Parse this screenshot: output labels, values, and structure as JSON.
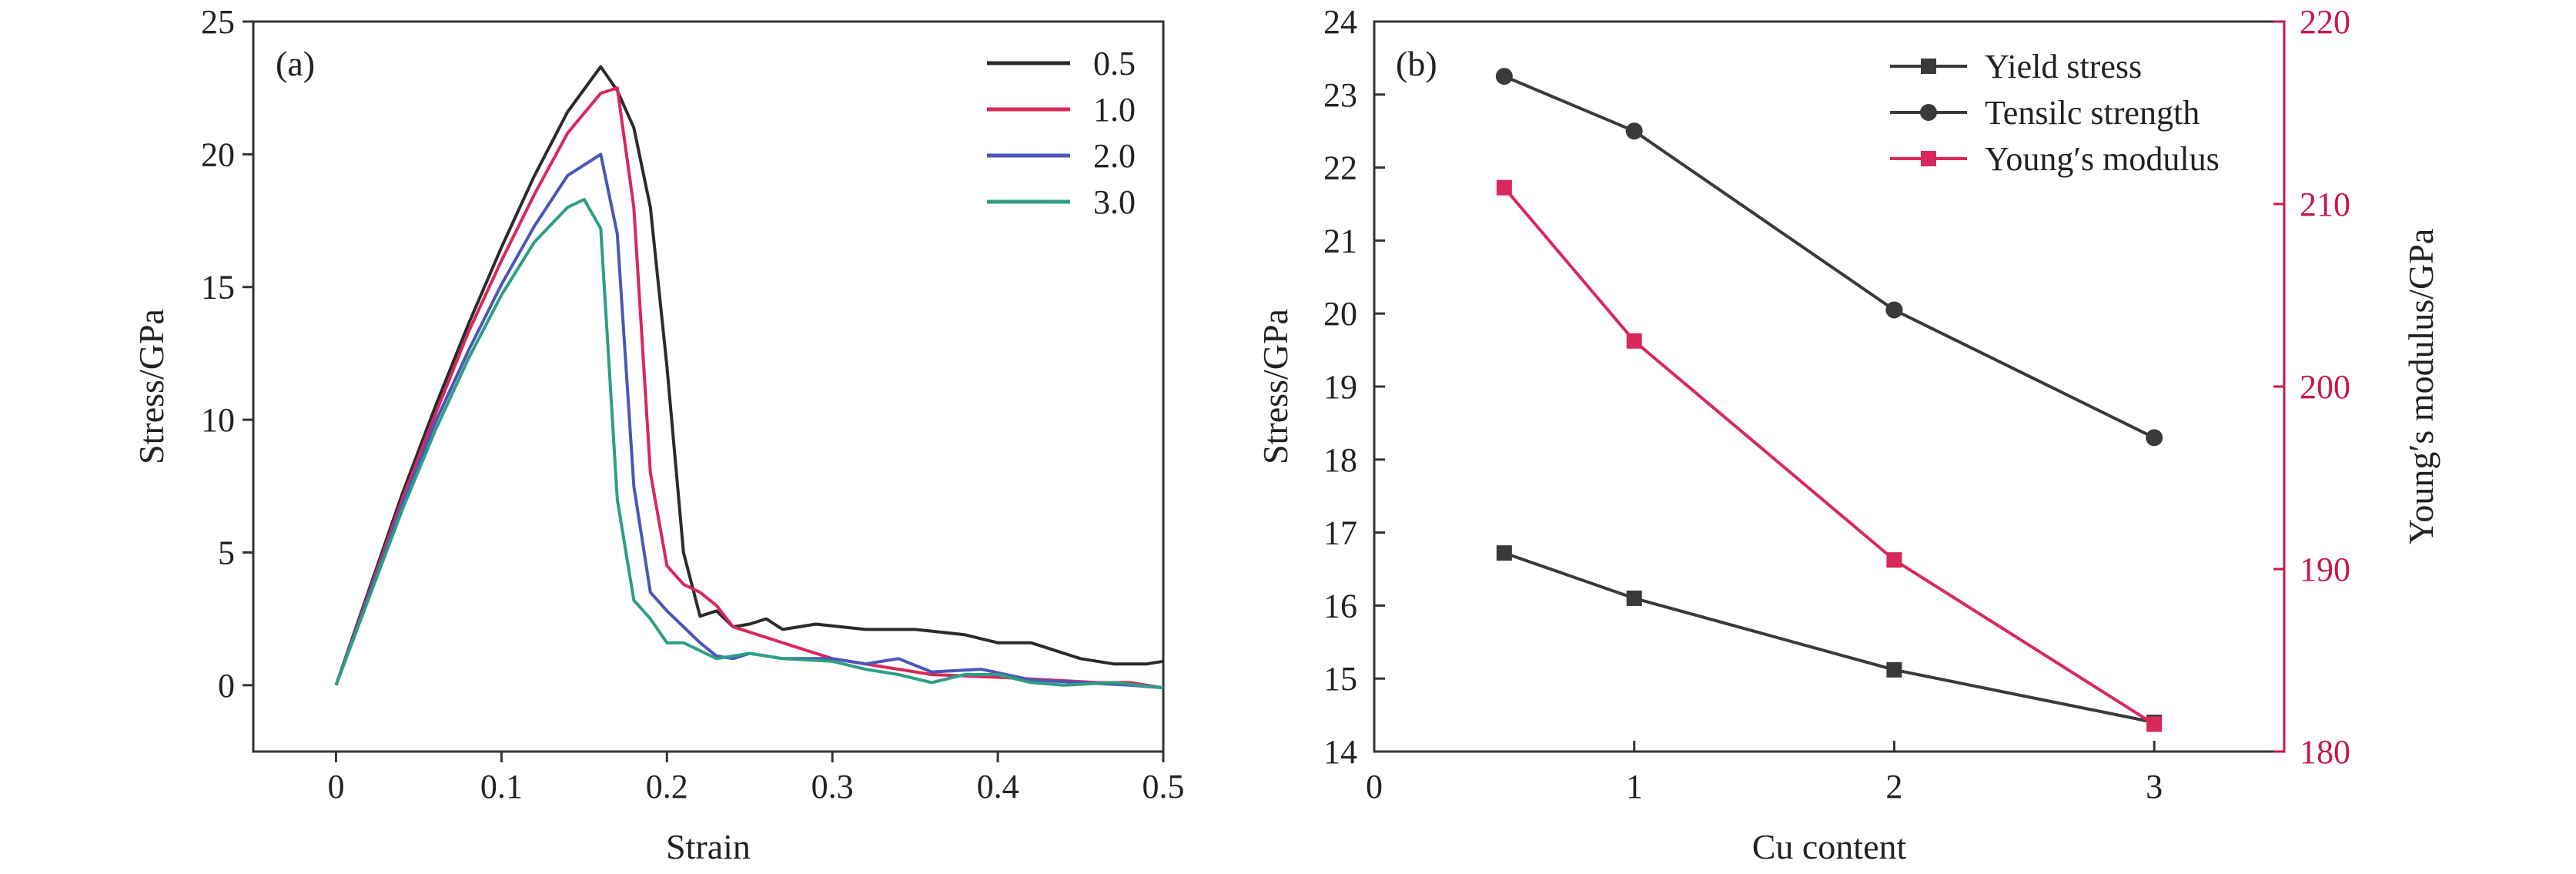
{
  "chart_data": [
    {
      "panel_label": "(a)",
      "type": "line",
      "xlabel": "Strain",
      "ylabel": "Stress/GPa",
      "xlim": [
        -0.05,
        0.5
      ],
      "ylim": [
        -2.5,
        25
      ],
      "xticks": [
        0,
        0.1,
        0.2,
        0.3,
        0.4,
        0.5
      ],
      "xtick_labels": [
        "0",
        "0.1",
        "0.2",
        "0.3",
        "0.4",
        "0.5"
      ],
      "yticks": [
        0,
        5,
        10,
        15,
        20,
        25
      ],
      "ytick_labels": [
        "0",
        "5",
        "10",
        "15",
        "20",
        "25"
      ],
      "legend_position": "top-right",
      "grid": false,
      "series": [
        {
          "name": "0.5",
          "color": "#2b2b2b",
          "points": [
            [
              0,
              0
            ],
            [
              0.02,
              3.6
            ],
            [
              0.04,
              7.2
            ],
            [
              0.06,
              10.5
            ],
            [
              0.08,
              13.6
            ],
            [
              0.1,
              16.5
            ],
            [
              0.12,
              19.2
            ],
            [
              0.14,
              21.6
            ],
            [
              0.16,
              23.3
            ],
            [
              0.17,
              22.4
            ],
            [
              0.18,
              21.0
            ],
            [
              0.19,
              18.0
            ],
            [
              0.2,
              12.0
            ],
            [
              0.21,
              5.0
            ],
            [
              0.22,
              2.6
            ],
            [
              0.23,
              2.8
            ],
            [
              0.24,
              2.2
            ],
            [
              0.25,
              2.3
            ],
            [
              0.26,
              2.5
            ],
            [
              0.27,
              2.1
            ],
            [
              0.29,
              2.3
            ],
            [
              0.32,
              2.1
            ],
            [
              0.35,
              2.1
            ],
            [
              0.38,
              1.9
            ],
            [
              0.4,
              1.6
            ],
            [
              0.42,
              1.6
            ],
            [
              0.45,
              1.0
            ],
            [
              0.47,
              0.8
            ],
            [
              0.49,
              0.8
            ],
            [
              0.5,
              0.9
            ]
          ]
        },
        {
          "name": "1.0",
          "color": "#d9285a",
          "points": [
            [
              0,
              0
            ],
            [
              0.02,
              3.5
            ],
            [
              0.04,
              7.0
            ],
            [
              0.06,
              10.2
            ],
            [
              0.08,
              13.3
            ],
            [
              0.1,
              16.0
            ],
            [
              0.12,
              18.5
            ],
            [
              0.14,
              20.8
            ],
            [
              0.16,
              22.3
            ],
            [
              0.17,
              22.5
            ],
            [
              0.18,
              18.0
            ],
            [
              0.19,
              8.0
            ],
            [
              0.2,
              4.5
            ],
            [
              0.21,
              3.8
            ],
            [
              0.22,
              3.5
            ],
            [
              0.23,
              3.0
            ],
            [
              0.24,
              2.2
            ],
            [
              0.26,
              1.8
            ],
            [
              0.28,
              1.4
            ],
            [
              0.3,
              1.0
            ],
            [
              0.33,
              0.7
            ],
            [
              0.36,
              0.4
            ],
            [
              0.4,
              0.3
            ],
            [
              0.43,
              0.2
            ],
            [
              0.46,
              0.1
            ],
            [
              0.48,
              0.1
            ],
            [
              0.5,
              -0.1
            ]
          ]
        },
        {
          "name": "2.0",
          "color": "#4b56b8",
          "points": [
            [
              0,
              0
            ],
            [
              0.02,
              3.4
            ],
            [
              0.04,
              6.8
            ],
            [
              0.06,
              9.9
            ],
            [
              0.08,
              12.6
            ],
            [
              0.1,
              15.1
            ],
            [
              0.12,
              17.3
            ],
            [
              0.14,
              19.2
            ],
            [
              0.16,
              20.0
            ],
            [
              0.17,
              17.0
            ],
            [
              0.18,
              7.5
            ],
            [
              0.19,
              3.5
            ],
            [
              0.2,
              2.8
            ],
            [
              0.21,
              2.2
            ],
            [
              0.22,
              1.6
            ],
            [
              0.23,
              1.1
            ],
            [
              0.24,
              1.0
            ],
            [
              0.25,
              1.2
            ],
            [
              0.27,
              1.0
            ],
            [
              0.3,
              1.0
            ],
            [
              0.32,
              0.8
            ],
            [
              0.34,
              1.0
            ],
            [
              0.36,
              0.5
            ],
            [
              0.39,
              0.6
            ],
            [
              0.42,
              0.2
            ],
            [
              0.45,
              0.1
            ],
            [
              0.48,
              0.0
            ],
            [
              0.5,
              -0.1
            ]
          ]
        },
        {
          "name": "3.0",
          "color": "#2e9e86",
          "points": [
            [
              0,
              0
            ],
            [
              0.02,
              3.3
            ],
            [
              0.04,
              6.6
            ],
            [
              0.06,
              9.6
            ],
            [
              0.08,
              12.3
            ],
            [
              0.1,
              14.7
            ],
            [
              0.12,
              16.7
            ],
            [
              0.14,
              18.0
            ],
            [
              0.15,
              18.3
            ],
            [
              0.16,
              17.2
            ],
            [
              0.17,
              7.0
            ],
            [
              0.18,
              3.2
            ],
            [
              0.19,
              2.5
            ],
            [
              0.2,
              1.6
            ],
            [
              0.21,
              1.6
            ],
            [
              0.22,
              1.3
            ],
            [
              0.23,
              1.0
            ],
            [
              0.25,
              1.2
            ],
            [
              0.27,
              1.0
            ],
            [
              0.3,
              0.9
            ],
            [
              0.32,
              0.6
            ],
            [
              0.34,
              0.4
            ],
            [
              0.36,
              0.1
            ],
            [
              0.38,
              0.4
            ],
            [
              0.4,
              0.4
            ],
            [
              0.42,
              0.1
            ],
            [
              0.44,
              0.0
            ],
            [
              0.47,
              0.1
            ],
            [
              0.5,
              -0.1
            ]
          ]
        }
      ]
    },
    {
      "panel_label": "(b)",
      "type": "line",
      "xlabel": "Cu content",
      "ylabel": "Stress/GPa",
      "y2label": "Young′s modulus/GPa",
      "xlim": [
        0,
        3.5
      ],
      "ylim": [
        14,
        24
      ],
      "y2lim": [
        180,
        220
      ],
      "xticks": [
        0,
        1,
        2,
        3
      ],
      "xtick_labels": [
        "0",
        "1",
        "2",
        "3"
      ],
      "yticks": [
        14,
        15,
        16,
        17,
        18,
        19,
        20,
        21,
        22,
        23,
        24
      ],
      "ytick_labels": [
        "14",
        "15",
        "16",
        "17",
        "18",
        "19",
        "20",
        "21",
        "22",
        "23",
        "24"
      ],
      "y2ticks": [
        180,
        190,
        200,
        210,
        220
      ],
      "y2tick_labels": [
        "180",
        "190",
        "200",
        "210",
        "220"
      ],
      "right_axis_color": "#c8184a",
      "legend_position": "top-right",
      "grid": false,
      "x": [
        0.5,
        1,
        2,
        3
      ],
      "series": [
        {
          "name": "Yield stress",
          "axis": "left",
          "marker": "square",
          "color": "#3a3a3a",
          "values": [
            16.72,
            16.1,
            15.12,
            14.4
          ]
        },
        {
          "name": "Tensilc strength",
          "axis": "left",
          "marker": "circle",
          "color": "#3a3a3a",
          "values": [
            23.25,
            22.5,
            20.05,
            18.3
          ]
        },
        {
          "name": "Young′s modulus",
          "axis": "right",
          "marker": "square",
          "color": "#d9285a",
          "values": [
            210.9,
            202.5,
            190.5,
            181.5
          ]
        }
      ]
    }
  ]
}
